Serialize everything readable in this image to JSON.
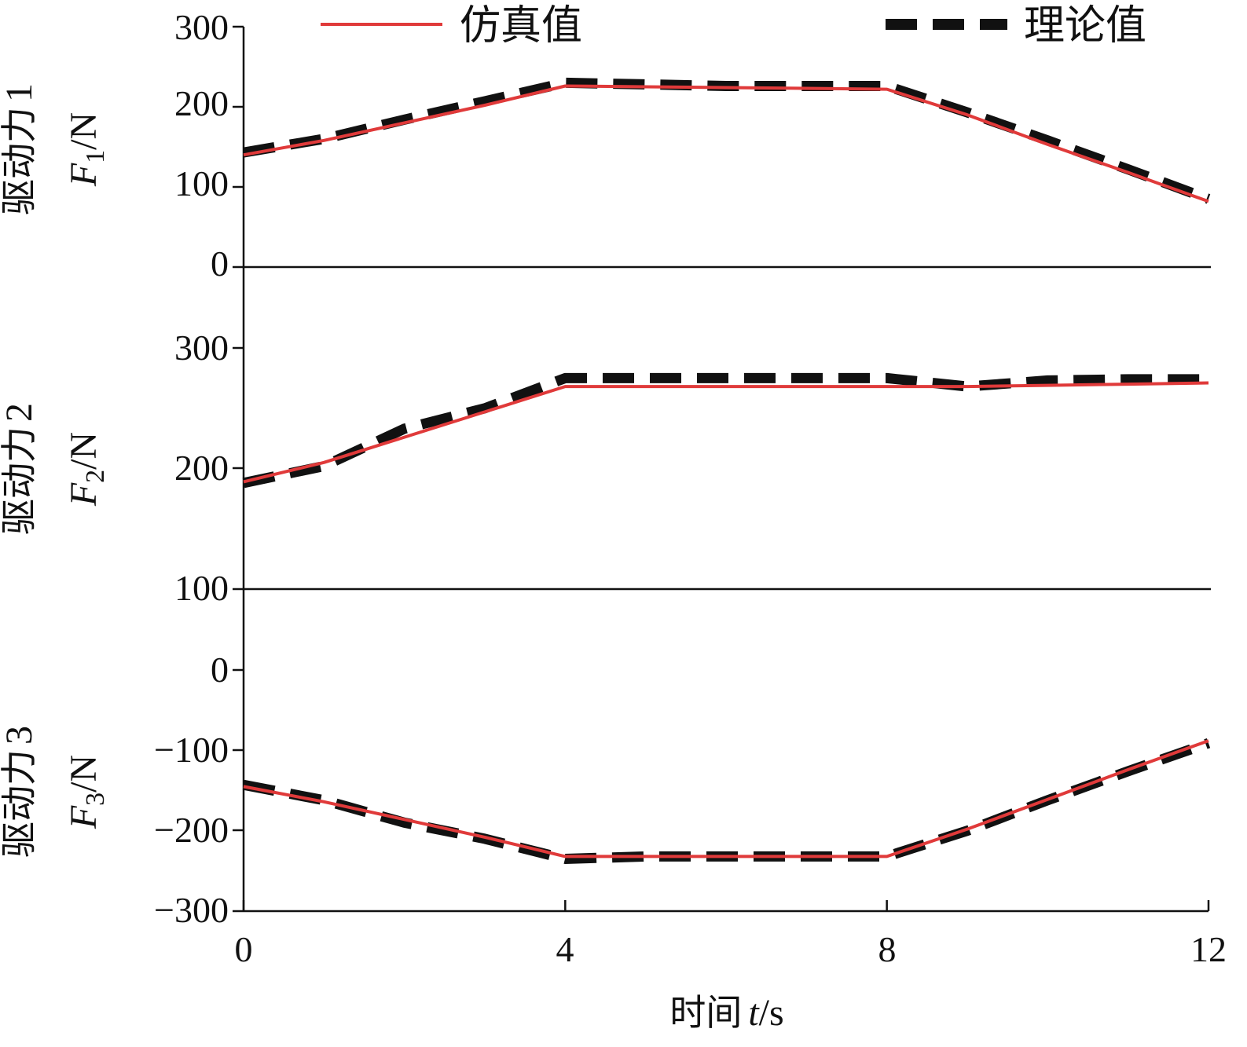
{
  "legend": {
    "simulated_label": "仿真值",
    "theoretical_label": "理论值"
  },
  "x_axis": {
    "label_cn": "时间",
    "label_var": "t",
    "label_unit": "/s",
    "ticks": [
      "0",
      "4",
      "8",
      "12"
    ]
  },
  "colors": {
    "simulated": "#e03a3a",
    "theoretical": "#111111",
    "axis": "#111111"
  },
  "panels": [
    {
      "ylabel_cn": "驱动力",
      "ylabel_index": "1",
      "ylabel_var": "F",
      "ylabel_sub": "1",
      "ylabel_unit": "/N",
      "ticks": [
        "0",
        "100",
        "200",
        "300"
      ]
    },
    {
      "ylabel_cn": "驱动力",
      "ylabel_index": "2",
      "ylabel_var": "F",
      "ylabel_sub": "2",
      "ylabel_unit": "/N",
      "ticks": [
        "100",
        "200",
        "300"
      ]
    },
    {
      "ylabel_cn": "驱动力",
      "ylabel_index": "3",
      "ylabel_var": "F",
      "ylabel_sub": "3",
      "ylabel_unit": "/N",
      "ticks": [
        "−300",
        "−200",
        "−100",
        "0"
      ]
    }
  ],
  "chart_data": [
    {
      "type": "line",
      "xlim": [
        0,
        12
      ],
      "ylim": [
        0,
        300
      ],
      "x": [
        0,
        1,
        2,
        3,
        4,
        5,
        6,
        7,
        8,
        9,
        10,
        11,
        12
      ],
      "series": [
        {
          "name": "仿真值",
          "values": [
            140,
            158,
            180,
            202,
            226,
            225,
            224,
            223,
            222,
            190,
            153,
            118,
            82
          ]
        },
        {
          "name": "理论值",
          "values": [
            143,
            160,
            184,
            207,
            230,
            228,
            226,
            226,
            226,
            193,
            158,
            122,
            85
          ]
        }
      ]
    },
    {
      "type": "line",
      "xlim": [
        0,
        12
      ],
      "ylim": [
        100,
        300
      ],
      "x": [
        0,
        1,
        2,
        3,
        4,
        5,
        6,
        7,
        8,
        9,
        10,
        11,
        12
      ],
      "series": [
        {
          "name": "仿真值",
          "values": [
            189,
            205,
            226,
            247,
            268,
            268,
            268,
            268,
            268,
            268,
            269,
            270,
            271
          ]
        },
        {
          "name": "理论值",
          "values": [
            188,
            202,
            233,
            250,
            275,
            275,
            275,
            275,
            275,
            268,
            273,
            274,
            274
          ]
        }
      ]
    },
    {
      "type": "line",
      "xlim": [
        0,
        12
      ],
      "ylim": [
        -300,
        0
      ],
      "x": [
        0,
        1,
        2,
        3,
        4,
        5,
        6,
        7,
        8,
        9,
        10,
        11,
        12
      ],
      "series": [
        {
          "name": "仿真值",
          "values": [
            -145,
            -164,
            -186,
            -208,
            -232,
            -232,
            -232,
            -232,
            -232,
            -198,
            -161,
            -124,
            -88
          ]
        },
        {
          "name": "理论值",
          "values": [
            -143,
            -162,
            -190,
            -210,
            -235,
            -232,
            -232,
            -232,
            -232,
            -200,
            -162,
            -126,
            -91
          ]
        }
      ]
    }
  ]
}
